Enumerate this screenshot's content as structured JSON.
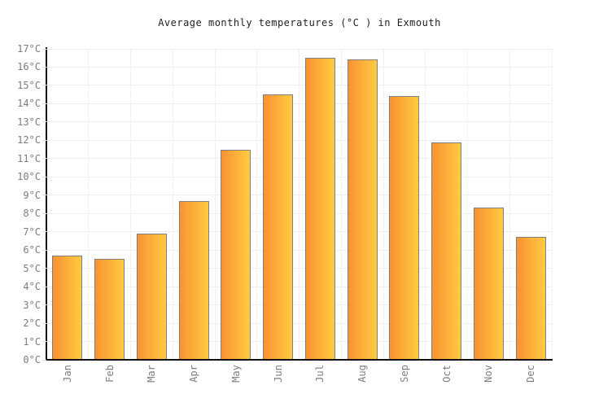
{
  "chart_data": {
    "type": "bar",
    "title": "Average monthly temperatures (°C ) in Exmouth",
    "categories": [
      "Jan",
      "Feb",
      "Mar",
      "Apr",
      "May",
      "Jun",
      "Jul",
      "Aug",
      "Sep",
      "Oct",
      "Nov",
      "Dec"
    ],
    "values": [
      5.7,
      5.5,
      6.9,
      8.7,
      11.5,
      14.5,
      16.5,
      16.4,
      14.4,
      11.9,
      8.3,
      6.7
    ],
    "xlabel": "",
    "ylabel": "",
    "ylim": [
      0,
      17
    ],
    "ytick_step": 1,
    "ytick_suffix": "°C",
    "grid": true,
    "legend": false,
    "style": {
      "bar_gradient_left": "#fa9232",
      "bar_gradient_right": "#ffcb42",
      "bar_border": "#7f7f7f",
      "axis_color": "#111111",
      "hgrid_color": "#eeeeee",
      "vgrid_color": "#f1f1f1",
      "tick_color": "#dddddd",
      "label_color": "#7d7d7d",
      "title_color": "#222222",
      "background": "#ffffff"
    }
  }
}
